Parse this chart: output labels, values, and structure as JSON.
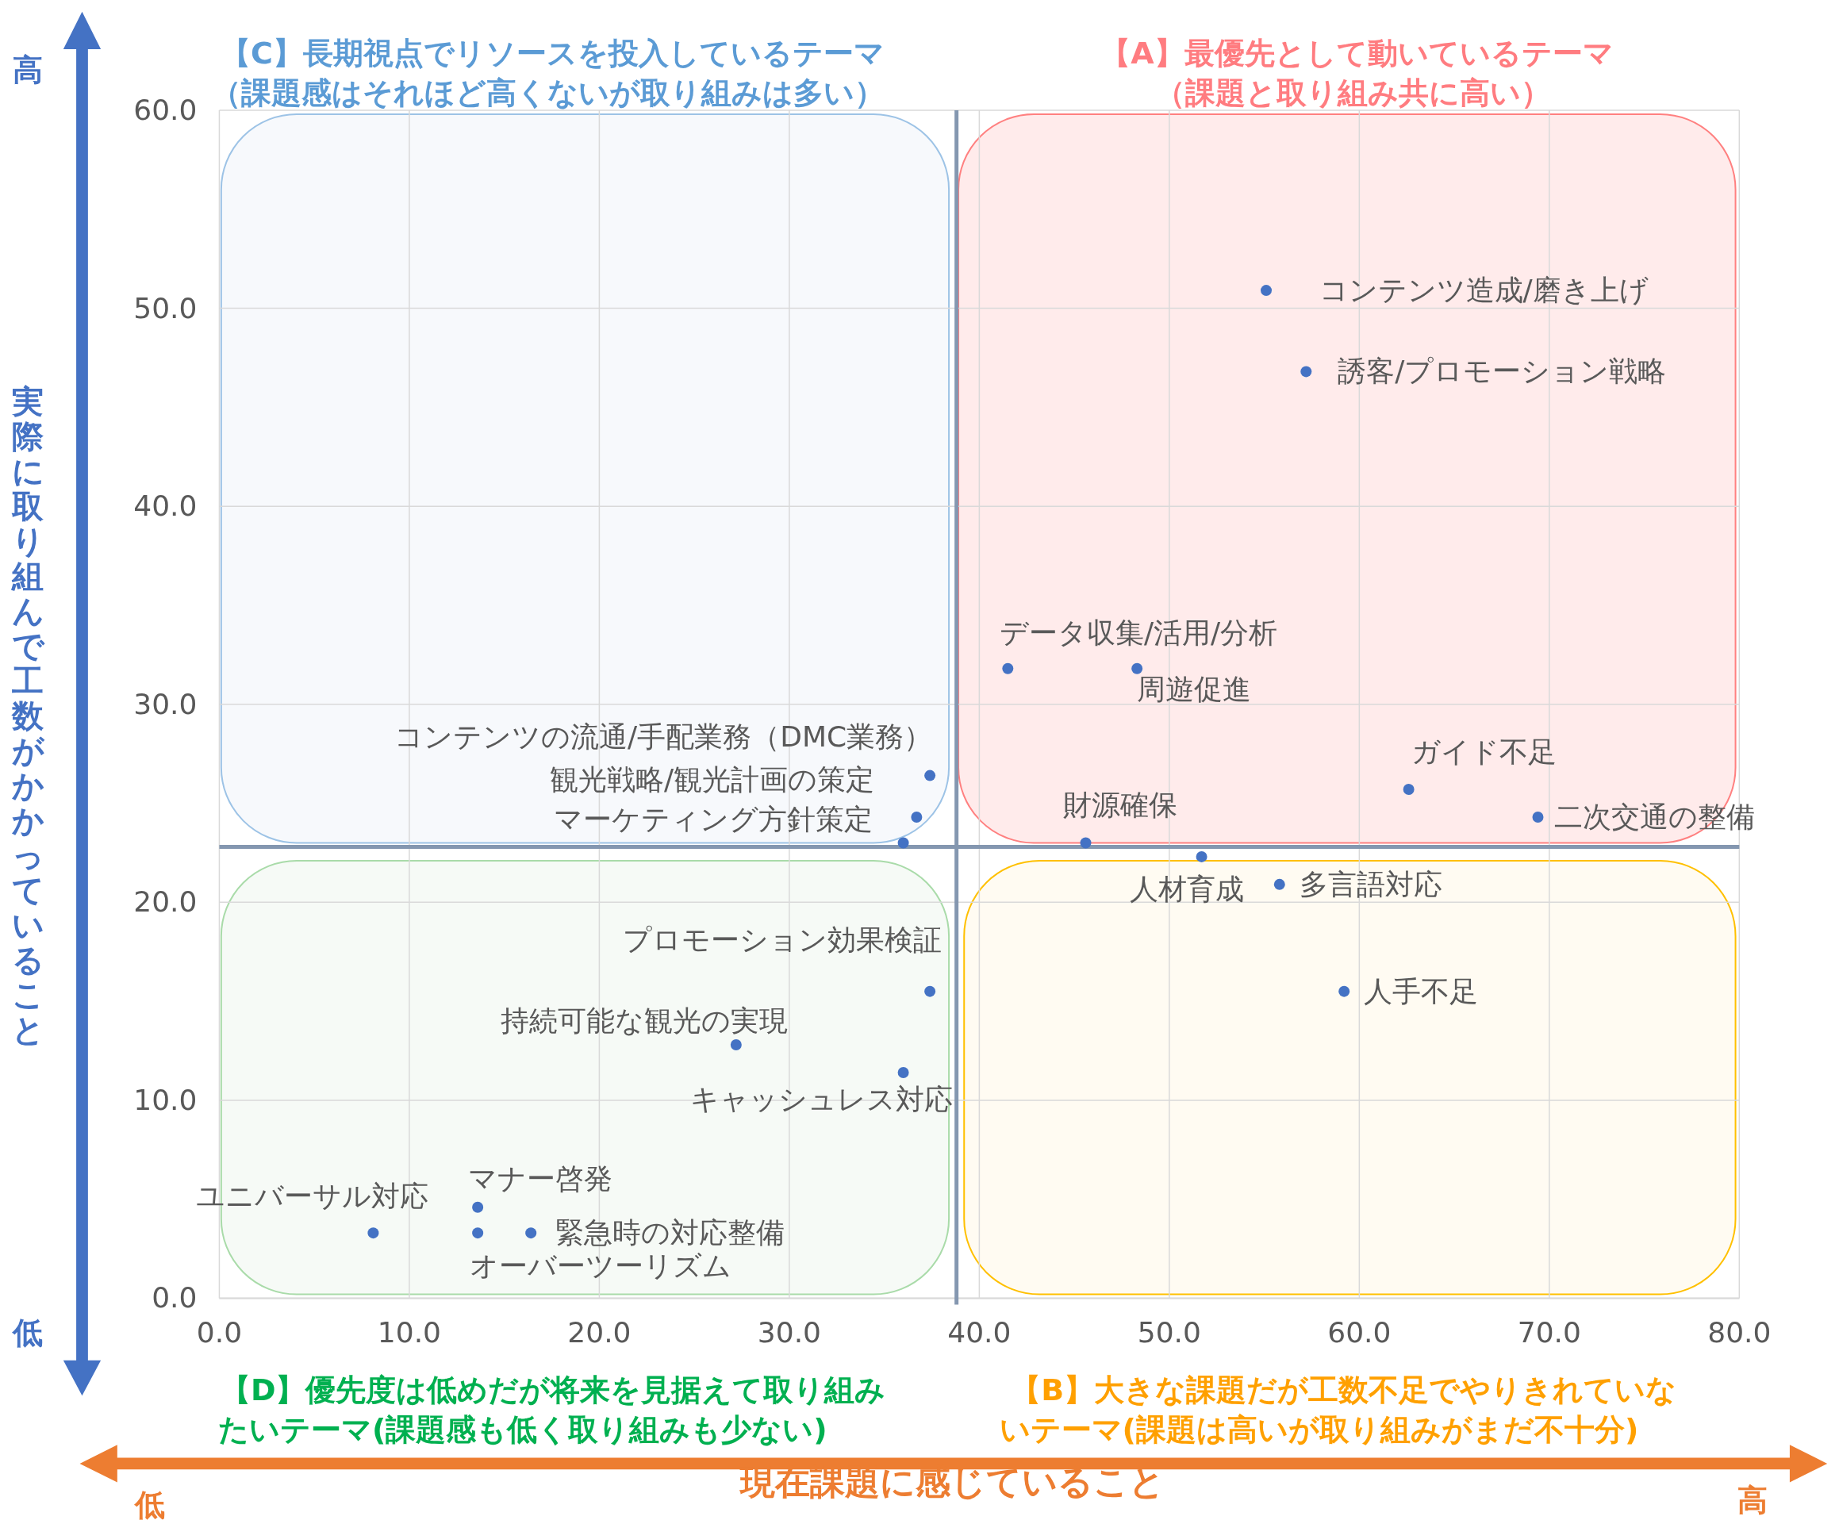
{
  "chart_data": {
    "type": "scatter",
    "marker": "circle",
    "grid": true,
    "xlabel": "現在課題に感じていること",
    "ylabel": "実際に取り組んで工数がかかっていること",
    "xlim": [
      0,
      80
    ],
    "ylim": [
      0,
      60
    ],
    "xticks": [
      {
        "value": 0,
        "label": "0.0"
      },
      {
        "value": 10,
        "label": "10.0"
      },
      {
        "value": 20,
        "label": "20.0"
      },
      {
        "value": 30,
        "label": "30.0"
      },
      {
        "value": 40,
        "label": "40.0"
      },
      {
        "value": 50,
        "label": "50.0"
      },
      {
        "value": 60,
        "label": "60.0"
      },
      {
        "value": 70,
        "label": "70.0"
      },
      {
        "value": 80,
        "label": "80.0"
      }
    ],
    "yticks": [
      {
        "value": 0,
        "label": "0.0"
      },
      {
        "value": 10,
        "label": "10.0"
      },
      {
        "value": 20,
        "label": "20.0"
      },
      {
        "value": 30,
        "label": "30.0"
      },
      {
        "value": 40,
        "label": "40.0"
      },
      {
        "value": 50,
        "label": "50.0"
      },
      {
        "value": 60,
        "label": "60.0"
      }
    ],
    "ref_lines": [
      {
        "axis": "x",
        "value": 38.8,
        "color": "#8497b0"
      },
      {
        "axis": "y",
        "value": 22.8,
        "color": "#8497b0"
      }
    ],
    "series": [
      {
        "name": "コンテンツ造成/磨き上げ",
        "color": "#4472c4",
        "x": [
          55.1
        ],
        "values": [
          50.9
        ]
      },
      {
        "name": "誘客/プロモーション戦略",
        "color": "#4472c4",
        "x": [
          57.2
        ],
        "values": [
          46.8
        ]
      },
      {
        "name": "データ収集/活用/分析",
        "color": "#4472c4",
        "x": [
          41.5
        ],
        "values": [
          31.8
        ]
      },
      {
        "name": "周遊促進",
        "color": "#4472c4",
        "x": [
          48.3
        ],
        "values": [
          31.8
        ]
      },
      {
        "name": "ガイド不足",
        "color": "#4472c4",
        "x": [
          62.6
        ],
        "values": [
          25.7
        ]
      },
      {
        "name": "二次交通の整備",
        "color": "#4472c4",
        "x": [
          69.4
        ],
        "values": [
          24.3
        ]
      },
      {
        "name": "財源確保",
        "color": "#4472c4",
        "x": [
          45.6
        ],
        "values": [
          23.0
        ]
      },
      {
        "name": "人材育成",
        "color": "#4472c4",
        "x": [
          51.7
        ],
        "values": [
          22.3
        ]
      },
      {
        "name": "多言語対応",
        "color": "#4472c4",
        "x": [
          55.8
        ],
        "values": [
          20.9
        ]
      },
      {
        "name": "人手不足",
        "color": "#4472c4",
        "x": [
          59.2
        ],
        "values": [
          15.5
        ]
      },
      {
        "name": "コンテンツの流通/手配業務（DMC業務）",
        "color": "#4472c4",
        "x": [
          37.4
        ],
        "values": [
          26.4
        ]
      },
      {
        "name": "観光戦略/観光計画の策定",
        "color": "#4472c4",
        "x": [
          36.7
        ],
        "values": [
          24.3
        ]
      },
      {
        "name": "マーケティング方針策定",
        "color": "#4472c4",
        "x": [
          36.0
        ],
        "values": [
          23.0
        ]
      },
      {
        "name": "プロモーション効果検証",
        "color": "#4472c4",
        "x": [
          37.4
        ],
        "values": [
          15.5
        ]
      },
      {
        "name": "持続可能な観光の実現",
        "color": "#4472c4",
        "x": [
          27.2
        ],
        "values": [
          12.8
        ]
      },
      {
        "name": "キャッシュレス対応",
        "color": "#4472c4",
        "x": [
          36.0
        ],
        "values": [
          11.4
        ]
      },
      {
        "name": "マナー啓発",
        "color": "#4472c4",
        "x": [
          13.6
        ],
        "values": [
          4.6
        ]
      },
      {
        "name": "ユニバーサル対応",
        "color": "#4472c4",
        "x": [
          8.1
        ],
        "values": [
          3.3
        ]
      },
      {
        "name": "オーバーツーリズム",
        "color": "#4472c4",
        "x": [
          13.6
        ],
        "values": [
          3.3
        ]
      },
      {
        "name": "緊急時の対応整備",
        "color": "#4472c4",
        "x": [
          16.4
        ],
        "values": [
          3.3
        ]
      }
    ],
    "annotations": [
      "【C】長期視点でリソースを投入しているテーマ",
      "（課題感はそれほど高くないが取り組みは多い）",
      "【A】最優先として動いているテーマ",
      "（課題と取り組み共に高い）",
      "【D】優先度は低めだが将来を見据えて取り組み",
      "たいテーマ(課題感も低く取り組みも少ない)",
      "【B】大きな課題だが工数不足でやりきれていな",
      "いテーマ(課題は高いが取り組みがまだ不十分)",
      "高",
      "低",
      "低",
      "高"
    ]
  }
}
